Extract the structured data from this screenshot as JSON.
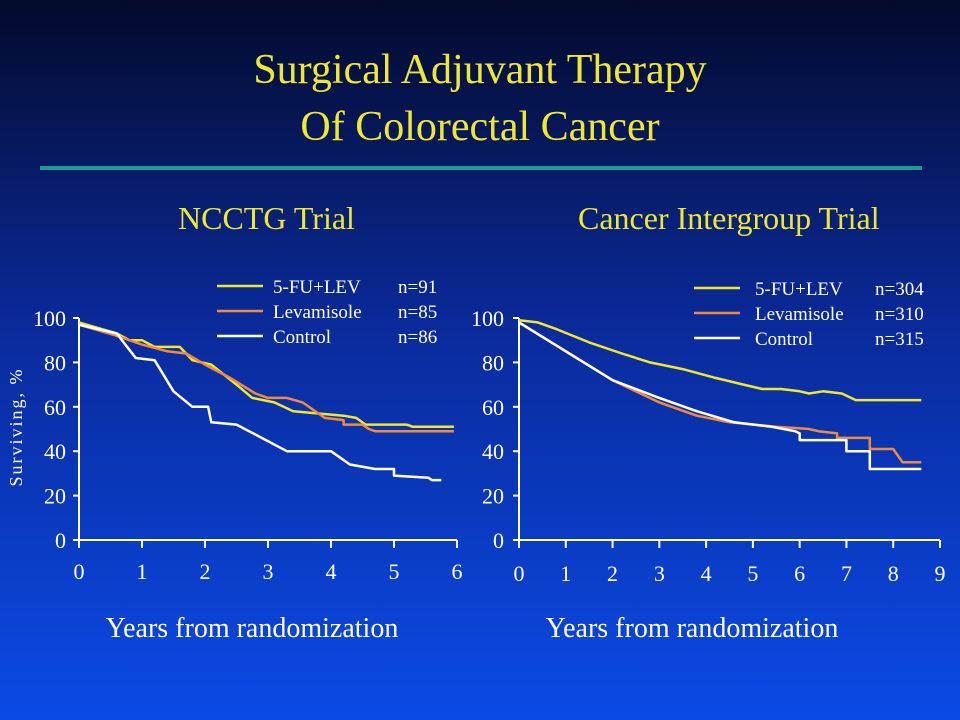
{
  "slide": {
    "title_line1": "Surgical Adjuvant Therapy",
    "title_line2": "Of Colorectal Cancer",
    "rule_color": "#1f9a9a",
    "title_color": "#f0e830"
  },
  "chart_data": [
    {
      "type": "line",
      "title": "NCCTG Trial",
      "xlabel": "Years from randomization",
      "ylabel": "Surviving, %",
      "xlim": [
        0,
        6
      ],
      "ylim": [
        0,
        100
      ],
      "xticks": [
        "0",
        "1",
        "2",
        "3",
        "4",
        "5",
        "6"
      ],
      "yticks": [
        "0",
        "20",
        "40",
        "60",
        "80",
        "100"
      ],
      "grid": false,
      "legend_position": "top-right",
      "series": [
        {
          "name": "5-FU+LEV",
          "n_label": "n=91",
          "color": "#f0e830",
          "points": [
            [
              0,
              98
            ],
            [
              0.6,
              93
            ],
            [
              0.8,
              90
            ],
            [
              1.0,
              90
            ],
            [
              1.2,
              87
            ],
            [
              1.6,
              87
            ],
            [
              1.8,
              81
            ],
            [
              2.1,
              79
            ],
            [
              2.5,
              70
            ],
            [
              2.75,
              64
            ],
            [
              3.1,
              62
            ],
            [
              3.4,
              58
            ],
            [
              3.8,
              57
            ],
            [
              4.2,
              56
            ],
            [
              4.4,
              55
            ],
            [
              4.55,
              52
            ],
            [
              5.0,
              52
            ],
            [
              5.2,
              52
            ],
            [
              5.3,
              51
            ],
            [
              5.95,
              51
            ]
          ]
        },
        {
          "name": "Levamisole",
          "n_label": "n=85",
          "color": "#f08a40",
          "points": [
            [
              0,
              97
            ],
            [
              0.6,
              92
            ],
            [
              1.0,
              88
            ],
            [
              1.4,
              85
            ],
            [
              1.7,
              84
            ],
            [
              2.0,
              79
            ],
            [
              2.4,
              73
            ],
            [
              2.8,
              66
            ],
            [
              3.0,
              64
            ],
            [
              3.3,
              64
            ],
            [
              3.55,
              62
            ],
            [
              3.9,
              55
            ],
            [
              4.2,
              54
            ],
            [
              4.2,
              52
            ],
            [
              4.5,
              52
            ],
            [
              4.6,
              50
            ],
            [
              4.7,
              49
            ],
            [
              5.95,
              49
            ]
          ]
        },
        {
          "name": "Control",
          "n_label": "n=86",
          "color": "#ffffff",
          "points": [
            [
              0,
              97
            ],
            [
              0.6,
              93
            ],
            [
              0.9,
              82
            ],
            [
              1.2,
              81
            ],
            [
              1.5,
              67
            ],
            [
              1.8,
              60
            ],
            [
              2.05,
              60
            ],
            [
              2.1,
              53
            ],
            [
              2.5,
              52
            ],
            [
              3.3,
              40
            ],
            [
              4.0,
              40
            ],
            [
              4.3,
              34
            ],
            [
              4.7,
              32
            ],
            [
              5.0,
              32
            ],
            [
              5.0,
              29
            ],
            [
              5.55,
              28
            ],
            [
              5.6,
              27
            ],
            [
              5.75,
              27
            ]
          ]
        }
      ]
    },
    {
      "type": "line",
      "title": "Cancer Intergroup Trial",
      "xlabel": "Years from randomization",
      "ylabel": "",
      "xlim": [
        0,
        9
      ],
      "ylim": [
        0,
        100
      ],
      "xticks": [
        "0",
        "1",
        "2",
        "3",
        "4",
        "5",
        "6",
        "7",
        "8",
        "9"
      ],
      "yticks": [
        "0",
        "20",
        "40",
        "60",
        "80",
        "100"
      ],
      "grid": false,
      "legend_position": "top-right",
      "series": [
        {
          "name": "5-FU+LEV",
          "n_label": "n=304",
          "color": "#f0e830",
          "points": [
            [
              0,
              99
            ],
            [
              0.4,
              98
            ],
            [
              0.8,
              95
            ],
            [
              1.5,
              89
            ],
            [
              2.2,
              84
            ],
            [
              2.8,
              80
            ],
            [
              3.5,
              77
            ],
            [
              4.2,
              73
            ],
            [
              4.8,
              70
            ],
            [
              5.2,
              68
            ],
            [
              5.6,
              68
            ],
            [
              6.0,
              67
            ],
            [
              6.2,
              66
            ],
            [
              6.5,
              67
            ],
            [
              6.9,
              66
            ],
            [
              7.2,
              63
            ],
            [
              8.0,
              63
            ],
            [
              8.6,
              63
            ]
          ]
        },
        {
          "name": "Levamisole",
          "n_label": "n=310",
          "color": "#f08a40",
          "points": [
            [
              0,
              98
            ],
            [
              1.0,
              85
            ],
            [
              2.0,
              72
            ],
            [
              3.0,
              62
            ],
            [
              3.8,
              56
            ],
            [
              4.5,
              53
            ],
            [
              5.5,
              51
            ],
            [
              6.2,
              50
            ],
            [
              6.4,
              49
            ],
            [
              6.8,
              48
            ],
            [
              6.8,
              46
            ],
            [
              7.5,
              46
            ],
            [
              7.5,
              41
            ],
            [
              8.0,
              41
            ],
            [
              8.2,
              35
            ],
            [
              8.6,
              35
            ]
          ]
        },
        {
          "name": "Control",
          "n_label": "n=315",
          "color": "#ffffff",
          "points": [
            [
              0,
              98
            ],
            [
              1.0,
              85
            ],
            [
              2.0,
              72
            ],
            [
              3.0,
              64
            ],
            [
              3.8,
              58
            ],
            [
              4.6,
              53
            ],
            [
              5.4,
              51
            ],
            [
              5.9,
              49
            ],
            [
              6.0,
              48
            ],
            [
              6.0,
              45
            ],
            [
              7.0,
              45
            ],
            [
              7.0,
              40
            ],
            [
              7.5,
              40
            ],
            [
              7.5,
              32
            ],
            [
              8.6,
              32
            ]
          ]
        }
      ]
    }
  ]
}
